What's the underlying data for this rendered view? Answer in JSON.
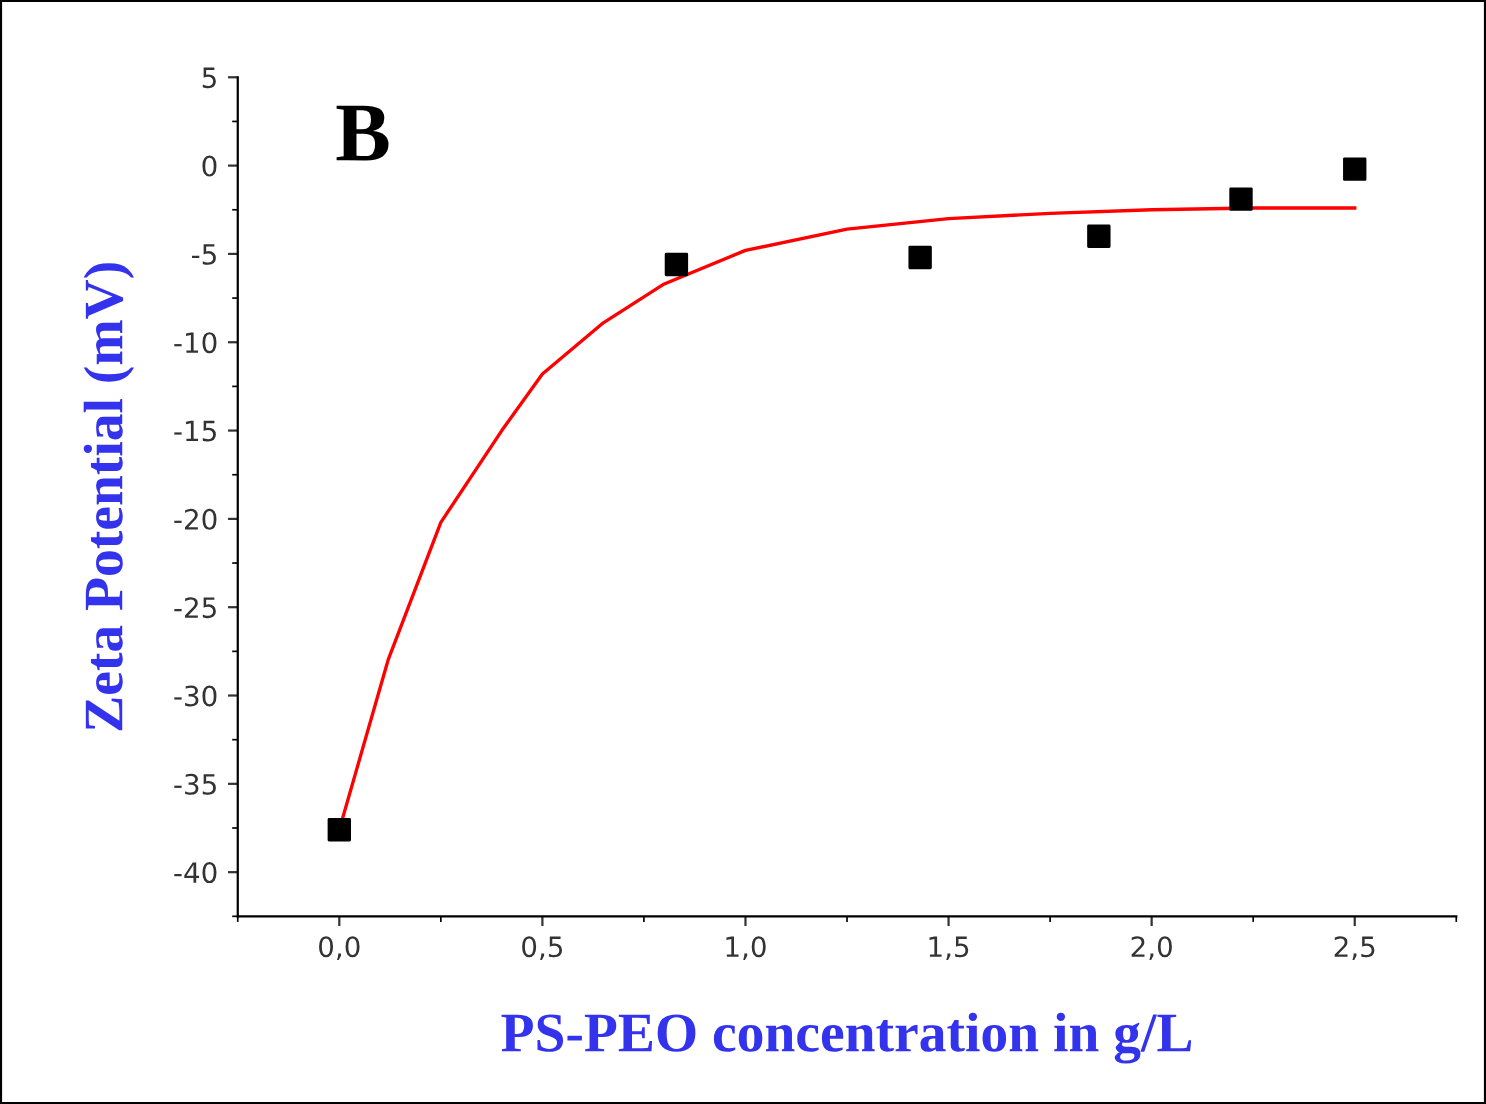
{
  "chart_data": {
    "type": "scatter",
    "title": "B",
    "xlabel": "PS-PEO concentration in g/L",
    "ylabel": "Zeta Potential (mV)",
    "xlim": [
      -0.25,
      2.75
    ],
    "ylim": [
      -42.5,
      5
    ],
    "xticks": [
      {
        "value": 0,
        "label": "0,0"
      },
      {
        "value": 0.5,
        "label": "0,5"
      },
      {
        "value": 1,
        "label": "1,0"
      },
      {
        "value": 1.5,
        "label": "1,5"
      },
      {
        "value": 2,
        "label": "2,0"
      },
      {
        "value": 2.5,
        "label": "2,5"
      }
    ],
    "yticks": [
      -40,
      -35,
      -30,
      -25,
      -20,
      -15,
      -10,
      -5,
      0,
      5
    ],
    "grid": false,
    "legend": false,
    "series": [
      {
        "color": "#000000",
        "marker": "square",
        "x": [
          0,
          0.83,
          1.43,
          1.87,
          2.22,
          2.5
        ],
        "values": [
          -37.6,
          -5.6,
          -5.2,
          -4.0,
          -1.9,
          -0.2
        ]
      },
      {
        "type": "line",
        "color": "#ff0000",
        "marker": "none",
        "line_style": "solid",
        "x": [
          0,
          0.12,
          0.25,
          0.4,
          0.5,
          0.65,
          0.8,
          1.0,
          1.25,
          1.5,
          1.75,
          2.0,
          2.25,
          2.5
        ],
        "values": [
          -37.6,
          -28,
          -20.2,
          -15,
          -11.8,
          -8.9,
          -6.7,
          -4.8,
          -3.6,
          -3.0,
          -2.7,
          -2.5,
          -2.4,
          -2.4
        ]
      }
    ]
  }
}
